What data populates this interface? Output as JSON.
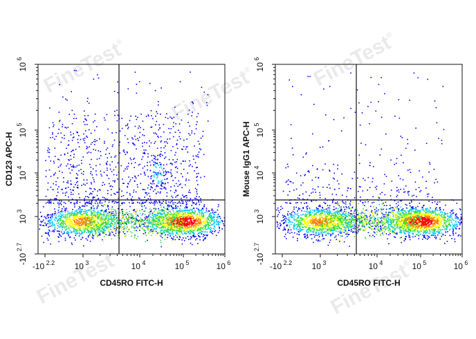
{
  "watermark": {
    "text": "FineTest",
    "mark": "®"
  },
  "chart_data": [
    {
      "type": "scatter",
      "subtype": "flow-cytometry-density-dot-plot",
      "xlabel": "CD45RO FITC-H",
      "ylabel": "CD123 APC-H",
      "x_ticks": [
        {
          "base": "-10",
          "exp": "2.2"
        },
        {
          "base": "10",
          "exp": "3"
        },
        {
          "base": "10",
          "exp": "4"
        },
        {
          "base": "10",
          "exp": "5"
        },
        {
          "base": "10",
          "exp": "6"
        }
      ],
      "y_ticks": [
        {
          "base": "-10",
          "exp": "2.7"
        },
        {
          "base": "10",
          "exp": "3"
        },
        {
          "base": "10",
          "exp": "4"
        },
        {
          "base": "10",
          "exp": "5"
        },
        {
          "base": "10",
          "exp": "6"
        }
      ],
      "quadrant_gate": {
        "x_log10": 3.6,
        "y_log10": 3.35
      },
      "scale": "biexponential",
      "populations": [
        {
          "x_log10": 3.0,
          "y_log10": 2.9,
          "relative_density": 0.8
        },
        {
          "x_log10": 5.0,
          "y_log10": 2.9,
          "relative_density": 1.0
        },
        {
          "x_log10": 4.4,
          "y_log10": 4.0,
          "relative_density": 0.35
        },
        {
          "x_log10": 2.8,
          "y_log10": 4.4,
          "relative_density": 0.08
        }
      ],
      "colormap": [
        "#0000ff",
        "#00c8ff",
        "#3cdc3c",
        "#ffff00",
        "#ff8000",
        "#ff0000"
      ]
    },
    {
      "type": "scatter",
      "subtype": "flow-cytometry-density-dot-plot",
      "xlabel": "CD45RO FITC-H",
      "ylabel": "Mouse IgG1 APC-H",
      "x_ticks": [
        {
          "base": "-10",
          "exp": "2.2"
        },
        {
          "base": "10",
          "exp": "3"
        },
        {
          "base": "10",
          "exp": "4"
        },
        {
          "base": "10",
          "exp": "5"
        },
        {
          "base": "10",
          "exp": "6"
        }
      ],
      "y_ticks": [
        {
          "base": "-10",
          "exp": "2.7"
        },
        {
          "base": "10",
          "exp": "3"
        },
        {
          "base": "10",
          "exp": "4"
        },
        {
          "base": "10",
          "exp": "5"
        },
        {
          "base": "10",
          "exp": "6"
        }
      ],
      "quadrant_gate": {
        "x_log10": 3.6,
        "y_log10": 3.35
      },
      "scale": "biexponential",
      "populations": [
        {
          "x_log10": 3.0,
          "y_log10": 2.9,
          "relative_density": 0.8
        },
        {
          "x_log10": 5.0,
          "y_log10": 2.9,
          "relative_density": 1.0
        }
      ],
      "colormap": [
        "#0000ff",
        "#00c8ff",
        "#3cdc3c",
        "#ffff00",
        "#ff8000",
        "#ff0000"
      ]
    }
  ]
}
